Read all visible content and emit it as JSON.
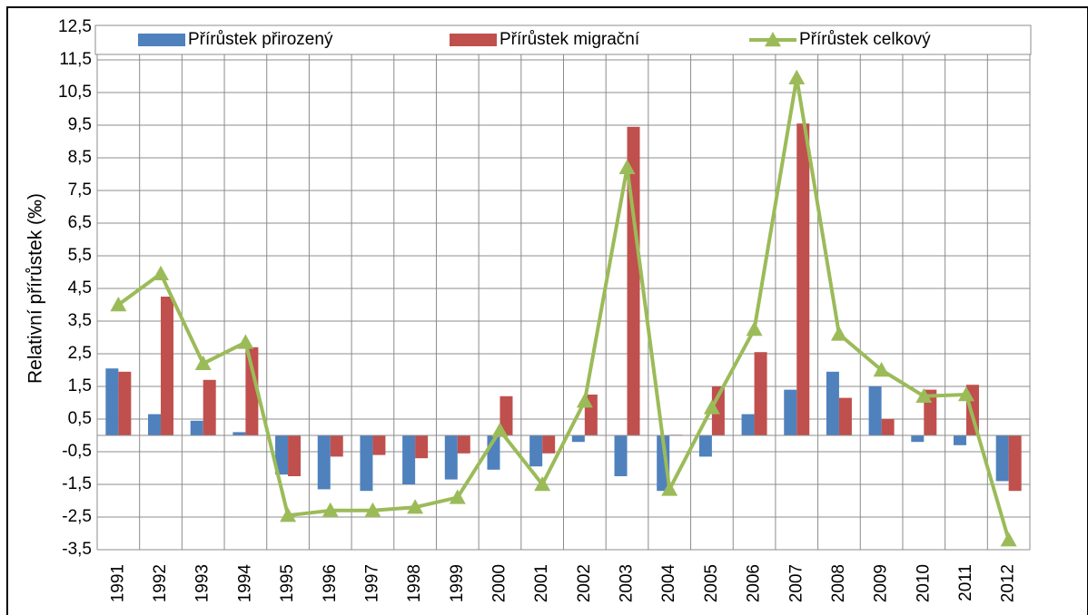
{
  "chart_data": {
    "type": "bar_line",
    "y_label": "Relativní přírůstek (‰)",
    "categories": [
      "1991",
      "1992",
      "1993",
      "1994",
      "1995",
      "1996",
      "1997",
      "1998",
      "1999",
      "2000",
      "2001",
      "2002",
      "2003",
      "2004",
      "2005",
      "2006",
      "2007",
      "2008",
      "2009",
      "2010",
      "2011",
      "2012"
    ],
    "series": [
      {
        "name": "Přírůstek přirozený",
        "type": "bar",
        "color": "#4f81bd",
        "values": [
          2.05,
          0.65,
          0.45,
          0.1,
          -1.2,
          -1.65,
          -1.7,
          -1.5,
          -1.35,
          -1.05,
          -0.95,
          -0.2,
          -1.25,
          -1.7,
          -0.65,
          0.65,
          1.4,
          1.95,
          1.5,
          -0.2,
          -0.3,
          -1.4
        ]
      },
      {
        "name": "Přírůstek migrační",
        "type": "bar",
        "color": "#c0504d",
        "values": [
          1.95,
          4.25,
          1.7,
          2.7,
          -1.25,
          -0.65,
          -0.6,
          -0.7,
          -0.55,
          1.2,
          -0.55,
          1.25,
          9.45,
          0.02,
          1.5,
          2.55,
          9.55,
          1.15,
          0.5,
          1.4,
          1.55,
          -1.7
        ]
      },
      {
        "name": "Přírůstek celkový",
        "type": "line",
        "color": "#9bbb59",
        "values": [
          4.0,
          4.95,
          2.2,
          2.85,
          -2.45,
          -2.3,
          -2.3,
          -2.2,
          -1.9,
          0.15,
          -1.5,
          1.05,
          8.2,
          -1.65,
          0.85,
          3.25,
          10.95,
          3.1,
          2.0,
          1.2,
          1.25,
          -3.2
        ]
      }
    ],
    "ylim": [
      -3.5,
      12.5
    ],
    "yticks": [
      {
        "value": -3.5,
        "label": "-3,5"
      },
      {
        "value": -2.5,
        "label": "-2,5"
      },
      {
        "value": -1.5,
        "label": "-1,5"
      },
      {
        "value": -0.5,
        "label": "-0,5"
      },
      {
        "value": 0.5,
        "label": "0,5"
      },
      {
        "value": 1.5,
        "label": "1,5"
      },
      {
        "value": 2.5,
        "label": "2,5"
      },
      {
        "value": 3.5,
        "label": "3,5"
      },
      {
        "value": 4.5,
        "label": "4,5"
      },
      {
        "value": 5.5,
        "label": "5,5"
      },
      {
        "value": 6.5,
        "label": "6,5"
      },
      {
        "value": 7.5,
        "label": "7,5"
      },
      {
        "value": 8.5,
        "label": "8,5"
      },
      {
        "value": 9.5,
        "label": "9,5"
      },
      {
        "value": 10.5,
        "label": "10,5"
      },
      {
        "value": 11.5,
        "label": "11,5"
      },
      {
        "value": 12.5,
        "label": "12,5"
      }
    ],
    "grid": true,
    "legend": "top"
  }
}
